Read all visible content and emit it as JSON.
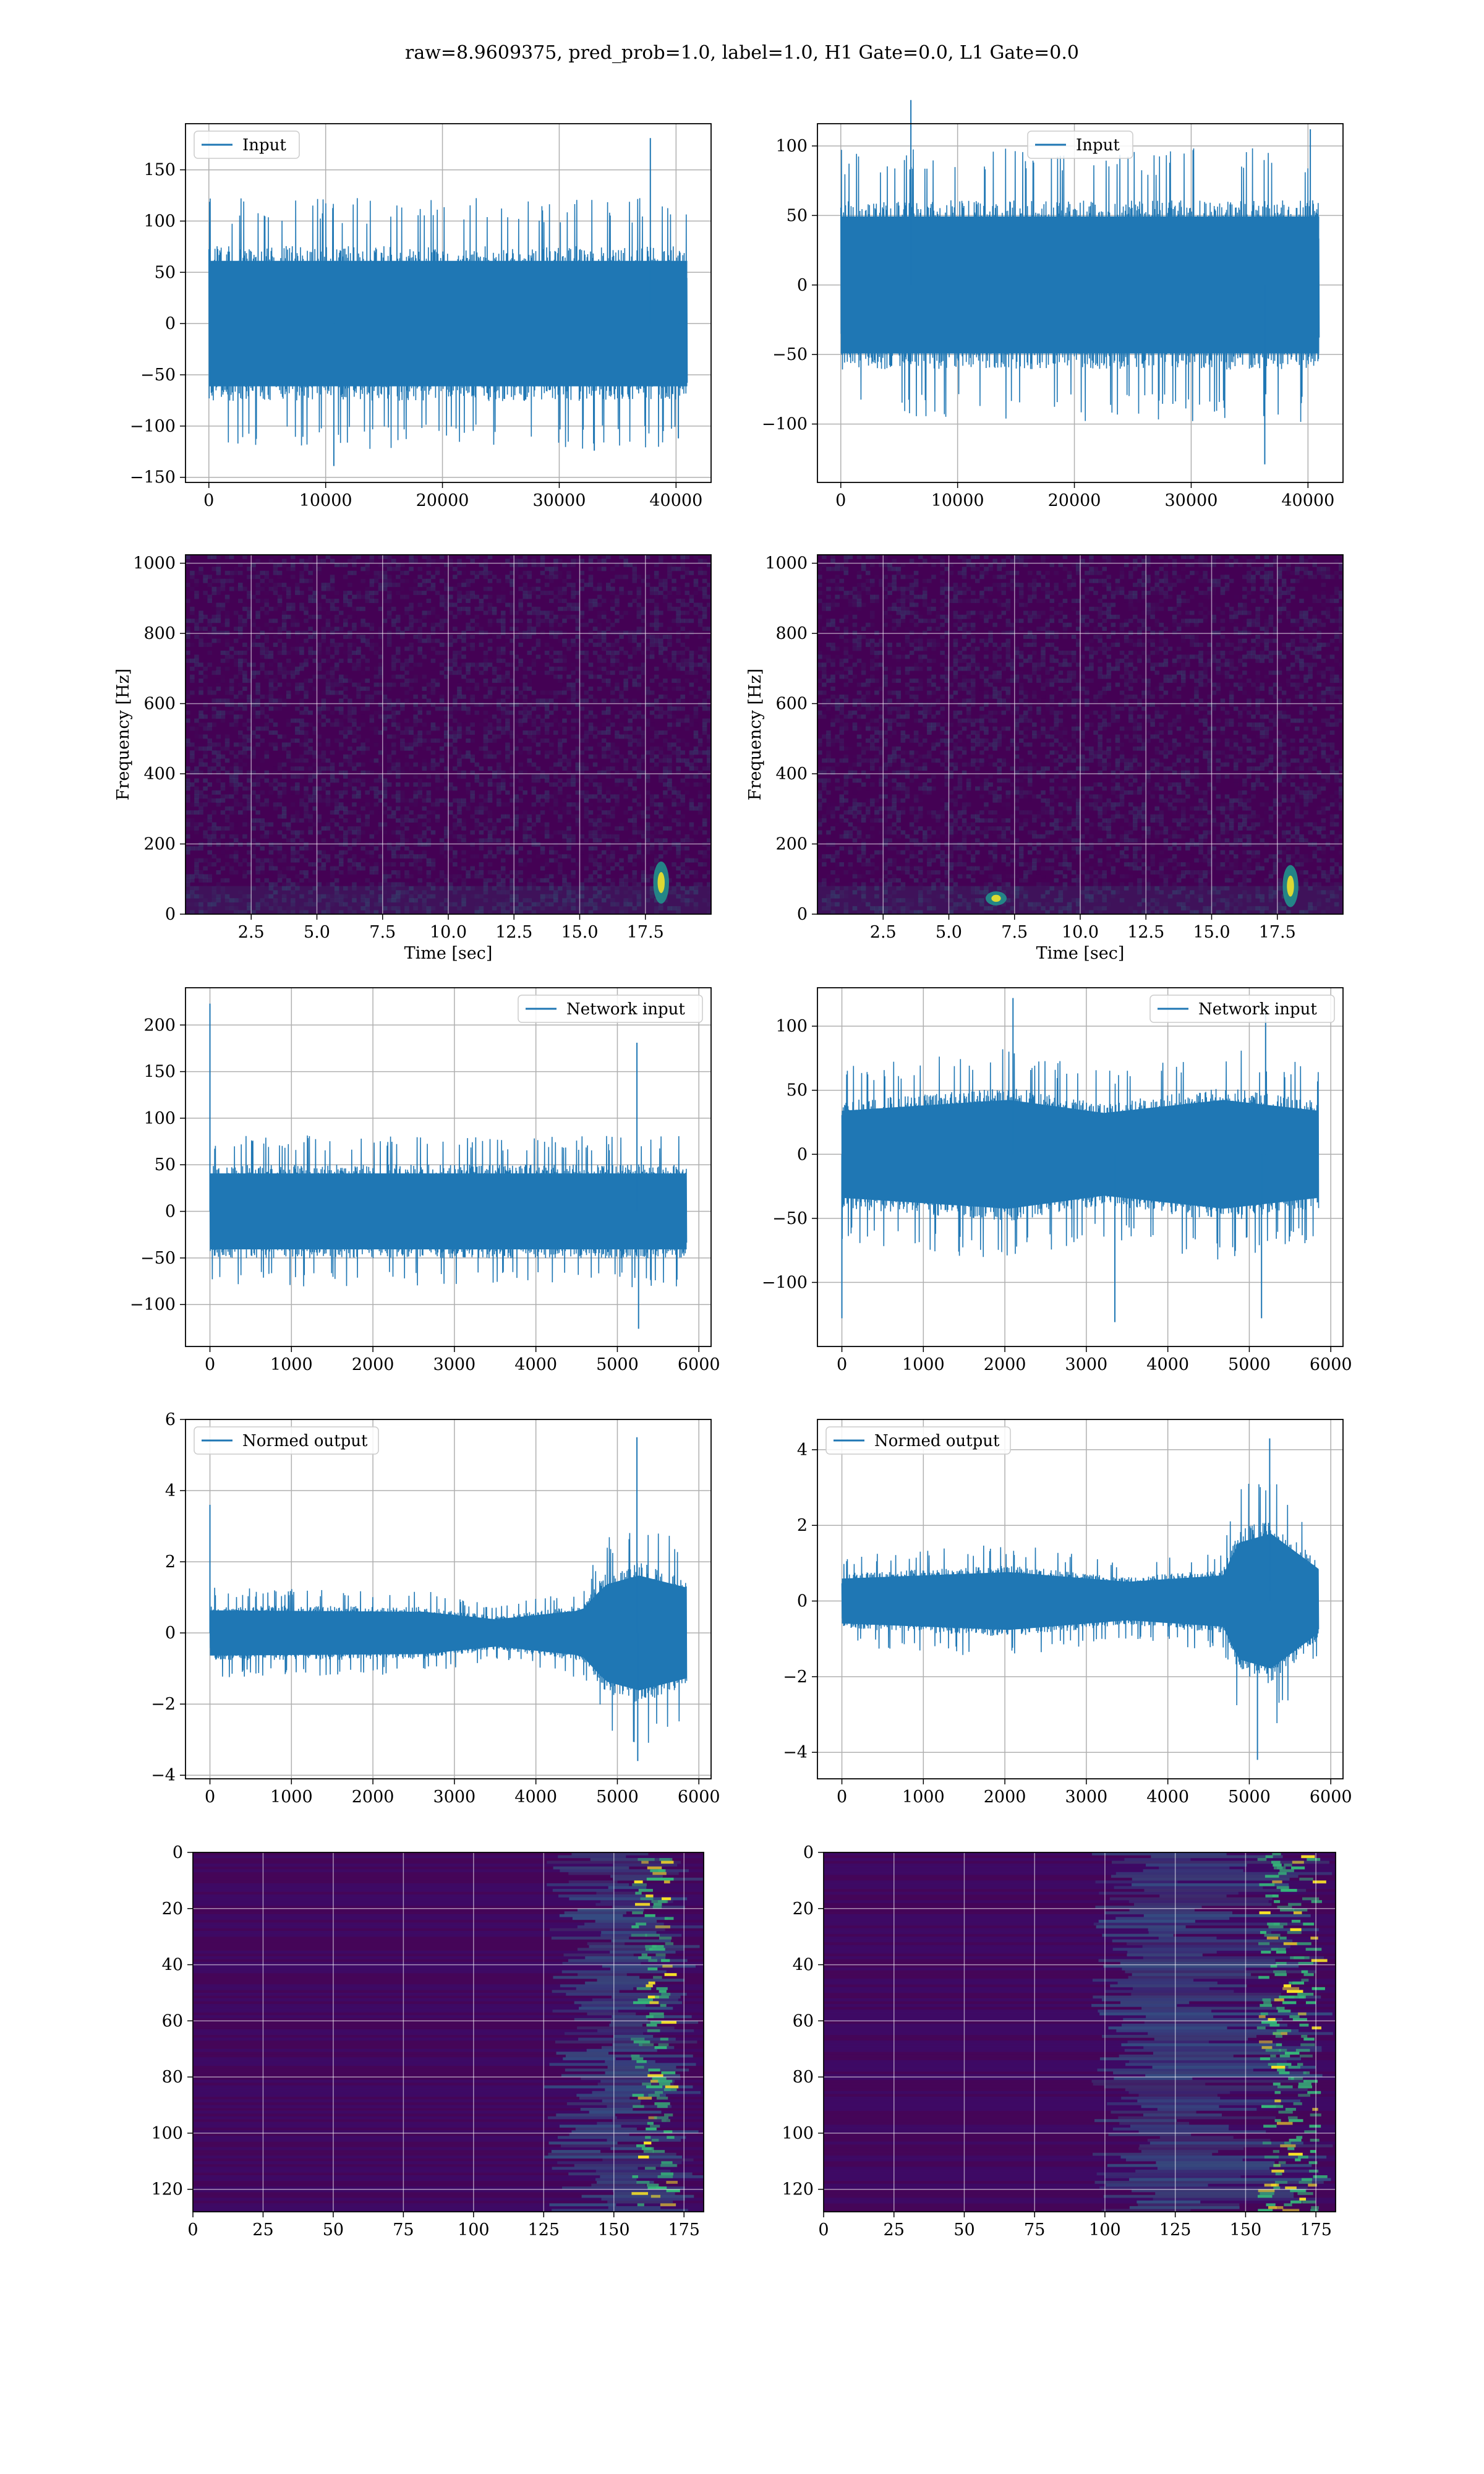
{
  "figure": {
    "title": "raw=8.9609375, pred_prob=1.0, label=1.0, H1 Gate=0.0, L1 Gate=0.0"
  },
  "colors": {
    "series": "#1f77b4",
    "grid": "#b0b0b0",
    "viridis_low": "#440154",
    "viridis_mid": "#21918c",
    "viridis_high": "#fde725"
  },
  "chart_data": [
    {
      "id": "input-left",
      "type": "line",
      "legend": "Input",
      "legend_loc": "upper left",
      "xlim": [
        -2000,
        43000
      ],
      "ylim": [
        -155,
        195
      ],
      "xticks": [
        0,
        10000,
        20000,
        30000,
        40000
      ],
      "yticks": [
        -150,
        -100,
        -50,
        0,
        50,
        100,
        150
      ],
      "x_range": [
        0,
        40960
      ],
      "band": [
        [
          0,
          -72,
          72
        ],
        [
          0.5,
          -72,
          72
        ],
        [
          1,
          -72,
          72
        ]
      ],
      "peak_amp": [
        -140,
        118
      ],
      "spikes": [
        {
          "x": 37800,
          "y": 181
        },
        {
          "x": 10700,
          "y": -139
        },
        {
          "x": 33000,
          "y": -124
        },
        {
          "x": 40200,
          "y": -112
        }
      ],
      "grid": true
    },
    {
      "id": "input-right",
      "type": "line",
      "legend": "Input",
      "legend_loc": "upper center",
      "xlim": [
        -2000,
        43000
      ],
      "ylim": [
        -142,
        116
      ],
      "xticks": [
        0,
        10000,
        20000,
        30000,
        40000
      ],
      "yticks": [
        -100,
        -50,
        0,
        50,
        100
      ],
      "x_range": [
        0,
        40960
      ],
      "band": [
        [
          0,
          -58,
          58
        ],
        [
          0.5,
          -58,
          58
        ],
        [
          1,
          -58,
          58
        ]
      ],
      "peak_amp": [
        -128,
        135
      ],
      "spikes": [
        {
          "x": 36300,
          "y": -129
        },
        {
          "x": 40200,
          "y": 112
        },
        {
          "x": 6000,
          "y": 133
        }
      ],
      "grid": true
    },
    {
      "id": "spectrogram-left",
      "type": "heatmap",
      "ylabel": "Frequency [Hz]",
      "xlabel": "Time [sec]",
      "xlim": [
        0,
        20
      ],
      "ylim": [
        0,
        1024
      ],
      "xticks": [
        2.5,
        5.0,
        7.5,
        10.0,
        12.5,
        15.0,
        17.5
      ],
      "yticks": [
        0,
        200,
        400,
        600,
        800,
        1000
      ],
      "hotspots": [
        {
          "t": 18.1,
          "f": 90,
          "w": 0.3,
          "h": 120
        }
      ],
      "grid": true
    },
    {
      "id": "spectrogram-right",
      "type": "heatmap",
      "ylabel": "Frequency [Hz]",
      "xlabel": "Time [sec]",
      "xlim": [
        0,
        20
      ],
      "ylim": [
        0,
        1024
      ],
      "xticks": [
        2.5,
        5.0,
        7.5,
        10.0,
        12.5,
        15.0,
        17.5
      ],
      "yticks": [
        0,
        200,
        400,
        600,
        800,
        1000
      ],
      "hotspots": [
        {
          "t": 18.0,
          "f": 80,
          "w": 0.3,
          "h": 120
        },
        {
          "t": 6.8,
          "f": 45,
          "w": 0.4,
          "h": 40
        }
      ],
      "grid": true
    },
    {
      "id": "network-input-left",
      "type": "line",
      "legend": "Network input",
      "legend_loc": "upper right",
      "xlim": [
        -300,
        6150
      ],
      "ylim": [
        -145,
        240
      ],
      "xticks": [
        0,
        1000,
        2000,
        3000,
        4000,
        5000,
        6000
      ],
      "yticks": [
        -100,
        -50,
        0,
        50,
        100,
        150,
        200
      ],
      "x_range": [
        0,
        5850
      ],
      "band": [
        [
          0,
          -48,
          48
        ],
        [
          0.5,
          -48,
          48
        ],
        [
          1,
          -48,
          48
        ]
      ],
      "peak_amp": [
        -120,
        105
      ],
      "spikes": [
        {
          "x": 0,
          "y": 223
        },
        {
          "x": 5240,
          "y": 181
        },
        {
          "x": 5260,
          "y": -126
        }
      ],
      "grid": true
    },
    {
      "id": "network-input-right",
      "type": "line",
      "legend": "Network input",
      "legend_loc": "upper right",
      "xlim": [
        -300,
        6150
      ],
      "ylim": [
        -150,
        130
      ],
      "xticks": [
        0,
        1000,
        2000,
        3000,
        4000,
        5000,
        6000
      ],
      "yticks": [
        -100,
        -50,
        0,
        50,
        100
      ],
      "x_range": [
        0,
        5850
      ],
      "band": [
        [
          0,
          -40,
          40
        ],
        [
          0.35,
          -50,
          50
        ],
        [
          0.55,
          -38,
          38
        ],
        [
          0.8,
          -50,
          50
        ],
        [
          1,
          -40,
          40
        ]
      ],
      "peak_amp": [
        -130,
        122
      ],
      "spikes": [
        {
          "x": 0,
          "y": -128
        },
        {
          "x": 2100,
          "y": 122
        },
        {
          "x": 5200,
          "y": 117
        },
        {
          "x": 3350,
          "y": -131
        },
        {
          "x": 5150,
          "y": -128
        }
      ],
      "grid": true
    },
    {
      "id": "normed-output-left",
      "type": "line",
      "legend": "Normed output",
      "legend_loc": "upper left",
      "xlim": [
        -300,
        6150
      ],
      "ylim": [
        -4.1,
        6.0
      ],
      "xticks": [
        0,
        1000,
        2000,
        3000,
        4000,
        5000,
        6000
      ],
      "yticks": [
        -4,
        -2,
        0,
        2,
        4,
        6
      ],
      "x_range": [
        0,
        5850
      ],
      "band": [
        [
          0,
          -0.75,
          0.75
        ],
        [
          0.45,
          -0.7,
          0.7
        ],
        [
          0.6,
          -0.45,
          0.45
        ],
        [
          0.78,
          -0.75,
          0.75
        ],
        [
          0.83,
          -1.6,
          1.6
        ],
        [
          0.9,
          -1.9,
          1.9
        ],
        [
          1,
          -1.5,
          1.5
        ]
      ],
      "peak_amp": [
        -3.7,
        2.3
      ],
      "spikes": [
        {
          "x": 0,
          "y": 3.6
        },
        {
          "x": 5240,
          "y": 5.5
        },
        {
          "x": 5250,
          "y": -3.6
        }
      ],
      "grid": true
    },
    {
      "id": "normed-output-right",
      "type": "line",
      "legend": "Normed output",
      "legend_loc": "upper left",
      "xlim": [
        -300,
        6150
      ],
      "ylim": [
        -4.7,
        4.8
      ],
      "xticks": [
        0,
        1000,
        2000,
        3000,
        4000,
        5000,
        6000
      ],
      "yticks": [
        -4,
        -2,
        0,
        2,
        4
      ],
      "x_range": [
        0,
        5850
      ],
      "band": [
        [
          0,
          -0.7,
          0.7
        ],
        [
          0.35,
          -0.9,
          0.9
        ],
        [
          0.6,
          -0.6,
          0.6
        ],
        [
          0.8,
          -0.8,
          0.8
        ],
        [
          0.83,
          -1.8,
          1.8
        ],
        [
          0.9,
          -2.1,
          2.1
        ],
        [
          1,
          -1.0,
          1.0
        ]
      ],
      "peak_amp": [
        -4.3,
        2.8
      ],
      "spikes": [
        {
          "x": 5250,
          "y": 4.3
        },
        {
          "x": 5100,
          "y": -4.2
        }
      ],
      "grid": true
    },
    {
      "id": "feature-map-left",
      "type": "heatmap",
      "xlim": [
        0,
        182
      ],
      "ylim": [
        128,
        0
      ],
      "xticks": [
        0,
        25,
        50,
        75,
        100,
        125,
        150,
        175
      ],
      "yticks": [
        0,
        20,
        40,
        60,
        80,
        100,
        120
      ],
      "active_start": 125,
      "hot_columns": [
        160,
        165
      ],
      "grid": true
    },
    {
      "id": "feature-map-right",
      "type": "heatmap",
      "xlim": [
        0,
        182
      ],
      "ylim": [
        128,
        0
      ],
      "xticks": [
        0,
        25,
        50,
        75,
        100,
        125,
        150,
        175
      ],
      "yticks": [
        0,
        20,
        40,
        60,
        80,
        100,
        120
      ],
      "active_start": 95,
      "hot_columns": [
        158,
        163,
        170
      ],
      "grid": true
    }
  ]
}
